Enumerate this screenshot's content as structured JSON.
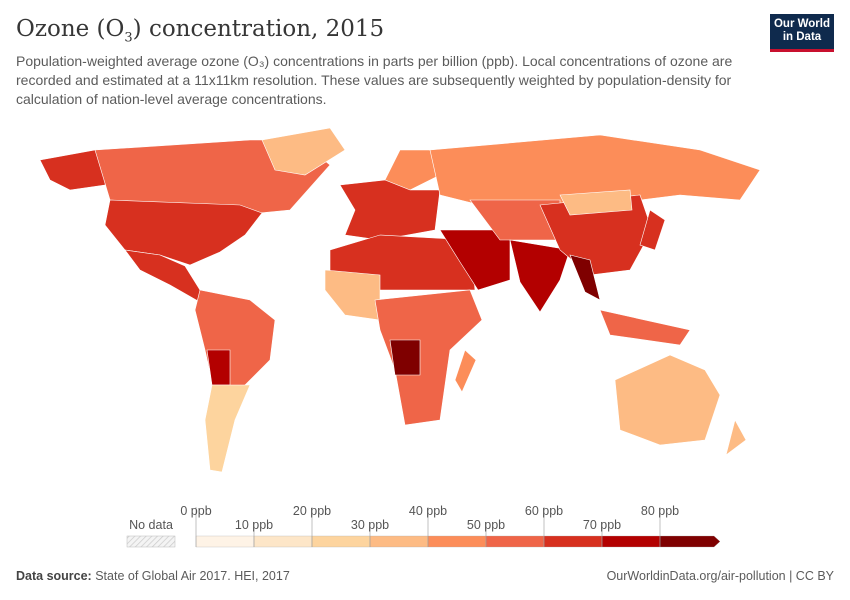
{
  "header": {
    "title_pre": "Ozone (O",
    "title_sub": "3",
    "title_post": ") concentration, 2015",
    "subtitle": "Population-weighted average ozone (O₃) concentrations in parts per billion (ppb). Local concentrations of ozone are recorded and estimated at a 11x11km resolution. These values are subsequently weighted by population-density for calculation of nation-level average concentrations."
  },
  "logo": {
    "line1": "Our World",
    "line2": "in Data"
  },
  "legend": {
    "no_data": "No data",
    "ticks": [
      "0 ppb",
      "10 ppb",
      "20 ppb",
      "30 ppb",
      "40 ppb",
      "50 ppb",
      "60 ppb",
      "70 ppb",
      "80 ppb"
    ],
    "colors": [
      "#fef3e6",
      "#fde6c8",
      "#fdd49e",
      "#fdbb84",
      "#fc8d59",
      "#ef6548",
      "#d7301f",
      "#b30000",
      "#7f0000"
    ]
  },
  "footer": {
    "source_label": "Data source:",
    "source": "State of Global Air 2017. HEI, 2017",
    "url": "OurWorldinData.org/air-pollution | CC BY"
  }
}
